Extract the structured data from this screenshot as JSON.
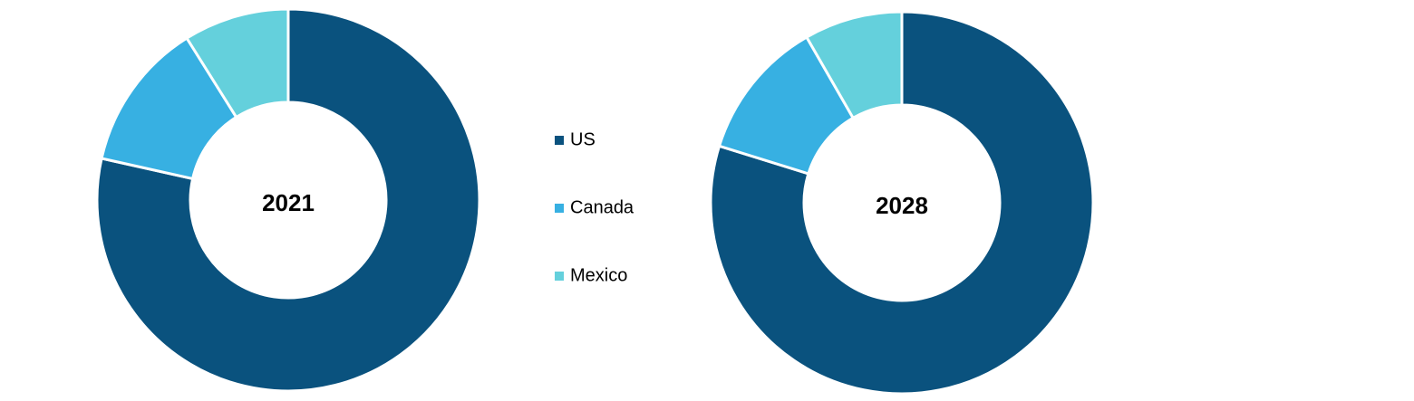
{
  "chart_data": [
    {
      "type": "donut",
      "title": "2021",
      "categories": [
        "US",
        "Canada",
        "Mexico"
      ],
      "values": [
        78.5,
        12.6,
        8.9
      ],
      "colors": [
        "#0a527e",
        "#37b0e2",
        "#64d0dc"
      ]
    },
    {
      "type": "donut",
      "title": "2028",
      "categories": [
        "US",
        "Canada",
        "Mexico"
      ],
      "values": [
        79.8,
        11.9,
        8.3
      ],
      "colors": [
        "#0a527e",
        "#37b0e2",
        "#64d0dc"
      ]
    }
  ]
}
